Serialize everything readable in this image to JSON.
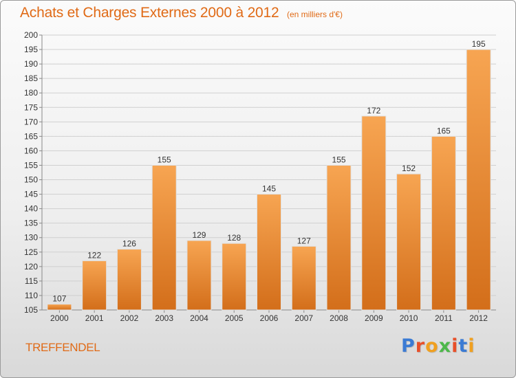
{
  "title": "Achats et Charges Externes 2000 à 2012",
  "unit": "(en milliers d'€)",
  "commune": "TREFFENDEL",
  "logo": {
    "text": "Proxiti",
    "letter_colors": [
      "#3b7bd4",
      "#e8502a",
      "#f0a020",
      "#4db84a",
      "#e8502a",
      "#3b7bd4",
      "#f0a020"
    ]
  },
  "colors": {
    "bar_top": "#f7a552",
    "bar_bottom": "#d36e1a",
    "accent": "#e06a16",
    "grid": "#cfcfcf"
  },
  "chart_data": {
    "type": "bar",
    "title": "Achats et Charges Externes 2000 à 2012",
    "categories": [
      "2000",
      "2001",
      "2002",
      "2003",
      "2004",
      "2005",
      "2006",
      "2007",
      "2008",
      "2009",
      "2010",
      "2011",
      "2012"
    ],
    "values": [
      107,
      122,
      126,
      155,
      129,
      128,
      145,
      127,
      155,
      172,
      152,
      165,
      195
    ],
    "ylim": [
      105,
      200
    ],
    "yticks": [
      105,
      110,
      115,
      120,
      125,
      130,
      135,
      140,
      145,
      150,
      155,
      160,
      165,
      170,
      175,
      180,
      185,
      190,
      195,
      200
    ],
    "grid": true,
    "xlabel": "",
    "ylabel": ""
  }
}
